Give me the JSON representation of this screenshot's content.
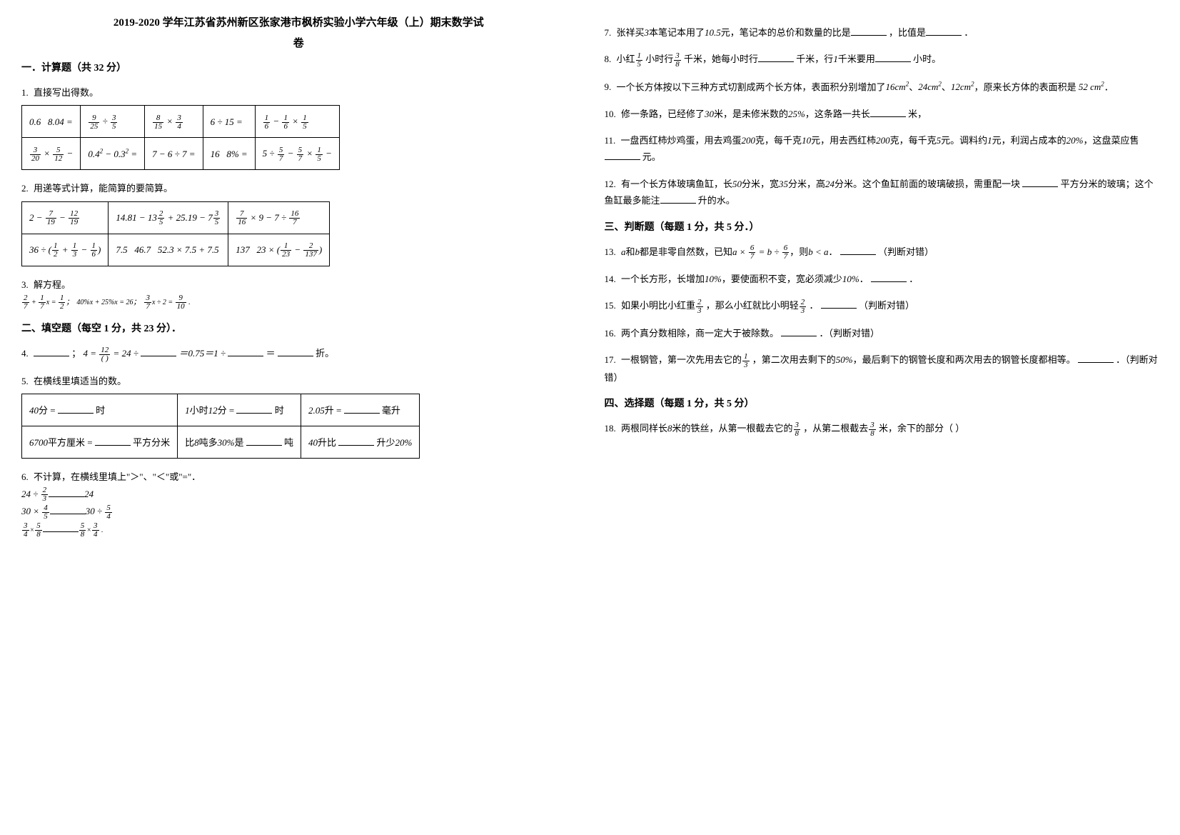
{
  "title": "2019-2020 学年江苏省苏州新区张家港市枫桥实验小学六年级（上）期末数学试",
  "subtitle": "卷",
  "section1": "一．计算题（共 32 分）",
  "q1": {
    "num": "1.",
    "text": "直接写出得数。"
  },
  "t1": {
    "r1": [
      "0.6 × 8.04 =",
      "9/25 ÷ 3/5",
      "8/15 × 3/4",
      "6 ÷ 15 =",
      "1/6 − 1/6 × 1/5"
    ],
    "r2": [
      "3/20 × 5/12 −",
      "0.4² − 0.3² =",
      "7 − 6 ÷ 7 =",
      "16 × 8% =",
      "5 ÷ 5/7 − 5/7 × 1/5 −"
    ]
  },
  "q2": {
    "num": "2.",
    "text": "用递等式计算，能简算的要简算。"
  },
  "t2": {
    "r1": [
      "2 − 7/19 − 12/19",
      "14.81 − 13 2/5 + 25.19 − 7 3/5",
      "7/16 × 9 − 7 ÷ 16/7"
    ],
    "r2": [
      "36 ÷ (1/2 + 1/3 − 1/6)",
      "7.5 × 46.7 + 52.3 × 7.5 + 7.5",
      "137 × 23 × (1/23 − 2/137)"
    ]
  },
  "q3": {
    "num": "3.",
    "text": "解方程。",
    "eq": "2/7 + 1/7 x = 1/2；  40%x + 25%x = 26；  3/7 x ÷ 2 = 9/10 ."
  },
  "section2": "二、填空题（每空 1 分，共 23 分）．",
  "q4": {
    "num": "4.",
    "text_a": "；",
    "math": "4 = 12/() = 24 ÷",
    "text_b": "＝0.75＝1 ÷",
    "text_c": "＝",
    "text_d": "折。"
  },
  "q5": {
    "num": "5.",
    "text": "在横线里填适当的数。"
  },
  "t5": {
    "r1c1a": "40分 =",
    "r1c1b": "时",
    "r1c2a": "1小时12分 =",
    "r1c2b": "时",
    "r1c3a": "2.05升 =",
    "r1c3b": "毫升",
    "r2c1a": "6700平方厘米 =",
    "r2c1b": "平方分米",
    "r2c2a": "比8吨多30%是",
    "r2c2b": "吨",
    "r2c3a": "40升比",
    "r2c3b": "升少20%"
  },
  "q6": {
    "num": "6.",
    "text": "不计算，在横线里填上\"＞\"、\"＜\"或\"=\"．",
    "l1a": "24 ÷ 2/3",
    "l1b": "24",
    "l2a": "30 × 4/5",
    "l2b": "30 ÷ 5/4",
    "l3a": "3/4 × 5/8",
    "l3b": "5/8 × 3/4 ."
  },
  "q7": {
    "num": "7.",
    "a": "张祥买3本笔记本用了10.5元，笔记本的总价和数量的比是",
    "b": "，比值是",
    "c": "．"
  },
  "q8": {
    "num": "8.",
    "a": "小红",
    "f1": "1/5",
    "b": "小时行",
    "f2": "3/8",
    "c": "千米，她每小时行",
    "d": "千米，行1千米要用",
    "e": "小时。"
  },
  "q9": {
    "num": "9.",
    "a": "一个长方体按以下三种方式切割成两个长方体，表面积分别增加了16cm²、24cm²、12cm²，原来长方体的表面积是 52 cm²．"
  },
  "q10": {
    "num": "10.",
    "a": "修一条路，已经修了30米，是未修米数的25%，这条路一共长",
    "b": "米，"
  },
  "q11": {
    "num": "11.",
    "a": "一盘西红柿炒鸡蛋，用去鸡蛋200克，每千克10元，用去西红柿200克，每千克5元。调料约1元，利润占成本的20%，这盘菜应售",
    "b": "元。"
  },
  "q12": {
    "num": "12.",
    "a": "有一个长方体玻璃鱼缸，长50分米，宽35分米，高24分米。这个鱼缸前面的玻璃破损，需重配一块",
    "b": "平方分米的玻璃；这个鱼缸最多能注",
    "c": "升的水。"
  },
  "section3": "三、判断题（每题 1 分，共 5 分．）",
  "q13": {
    "num": "13.",
    "a": "a和b都是非零自然数，已知a × 6/7 = b ÷ 6/7，则b < a．",
    "b": "（判断对错）"
  },
  "q14": {
    "num": "14.",
    "a": "一个长方形，长增加10%，要使面积不变，宽必须减少10%．",
    "b": "．"
  },
  "q15": {
    "num": "15.",
    "a": "如果小明比小红重",
    "f": "2/3",
    "b": "，那么小红就比小明轻",
    "c": "．",
    "d": "（判断对错）"
  },
  "q16": {
    "num": "16.",
    "a": "两个真分数相除，商一定大于被除数。",
    "b": "．（判断对错）"
  },
  "q17": {
    "num": "17.",
    "a": "一根钢管，第一次先用去它的",
    "f": "1/3",
    "b": "，第二次用去剩下的50%，最后剩下的钢管长度和两次用去的钢管长度都相等。",
    "c": "．（判断对错）"
  },
  "section4": "四、选择题（每题 1 分，共 5 分）",
  "q18": {
    "num": "18.",
    "a": "两根同样长8米的铁丝，从第一根截去它的",
    "f1": "3/8",
    "b": "，从第二根截去",
    "f2": "3/8",
    "c": "米，余下的部分（  ）"
  }
}
